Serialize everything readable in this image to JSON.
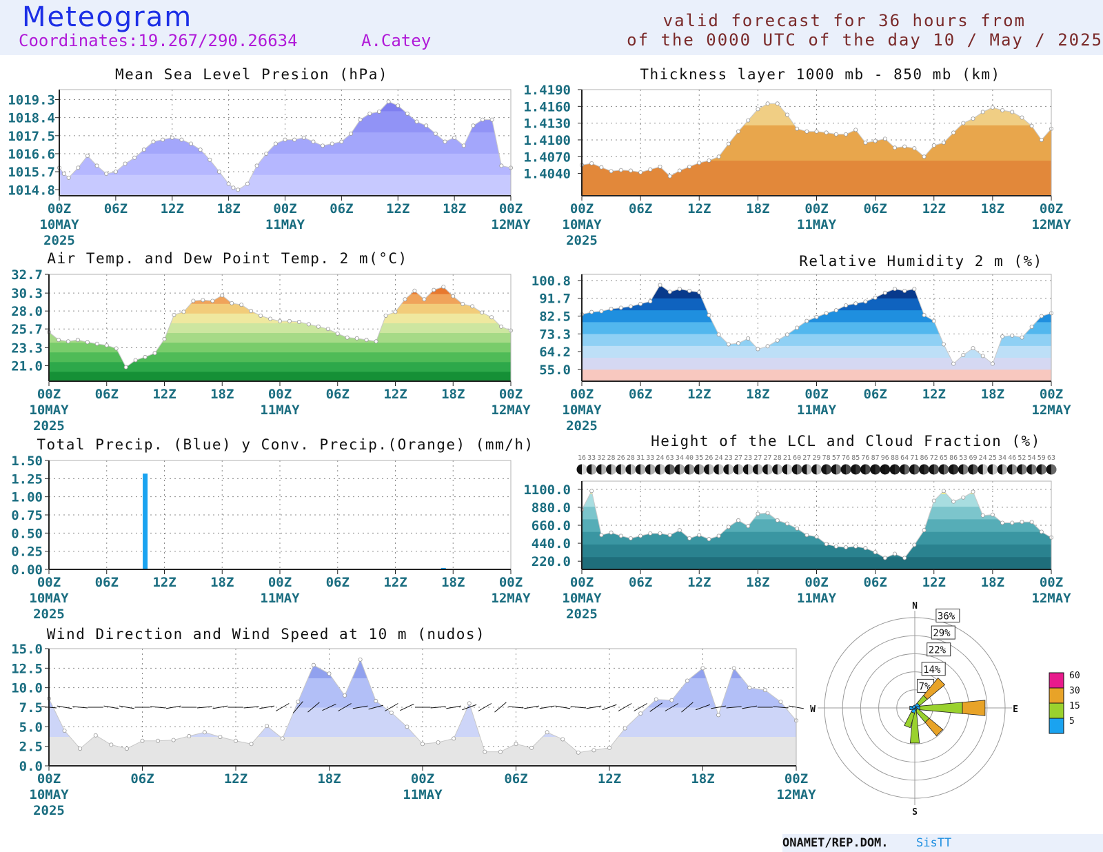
{
  "header": {
    "title": "Meteogram",
    "coordinates": "Coordinates:19.267/290.26634",
    "station": "A.Catey",
    "valid_line1": "valid forecast for 36 hours from",
    "valid_line2": "of the 0000 UTC of the day 10 / May / 2025"
  },
  "footer": {
    "org": "ONAMET/REP.DOM.",
    "system": "SisTT"
  },
  "time_axis": {
    "ticks": [
      "00Z",
      "06Z",
      "12Z",
      "18Z",
      "00Z",
      "06Z",
      "12Z",
      "18Z",
      "00Z"
    ],
    "dates": [
      {
        "at": 0,
        "line1": "10MAY",
        "line2": "2025"
      },
      {
        "at": 24,
        "line1": "11MAY",
        "line2": ""
      },
      {
        "at": 48,
        "line1": "12MAY",
        "line2": ""
      }
    ]
  },
  "colors": {
    "text": "#1a6d80",
    "grid": "#8a8a8a",
    "pressure_bands": [
      "#c7c9ff",
      "#b5b7ff",
      "#a3a6fb",
      "#9193f6",
      "#7f7ff0"
    ],
    "thickness_bands": [
      "#e2883a",
      "#e8a64c",
      "#f0ce84"
    ],
    "temp_bands": [
      "#159036",
      "#2da84a",
      "#4fbb57",
      "#79cc6b",
      "#a6da87",
      "#cde6a0",
      "#efe89f",
      "#f2cc7a",
      "#f0a35a",
      "#e7782f",
      "#e53b33"
    ],
    "rh_bands": [
      "#f8c8bf",
      "#d5d8f2",
      "#bddff7",
      "#8fd0f4",
      "#52b7ee",
      "#1f8fdf",
      "#0f63bf",
      "#083a8c",
      "#1a8a24"
    ],
    "lcl_bands": [
      "#1f6e7b",
      "#2a828f",
      "#3a96a2",
      "#56adb7",
      "#7cc5cc",
      "#a8dde0",
      "#f7f08a"
    ],
    "wind_bands": [
      "#e5e5e5",
      "#cdd5f8",
      "#b2bff7",
      "#91a1ee"
    ],
    "precip_total": "#1aa3f0",
    "precip_conv": "#f08c1a",
    "rose_bins": [
      "#1aa3f0",
      "#9ad22e",
      "#e8a328",
      "#e81a8c"
    ]
  },
  "chart_data": [
    {
      "id": "mslp",
      "type": "area",
      "title": "Mean Sea Level Presion (hPa)",
      "yticks": [
        1014.8,
        1015.7,
        1016.6,
        1017.5,
        1018.4,
        1019.3
      ],
      "ylim": [
        1014.5,
        1019.8
      ],
      "grid": true,
      "x_hours": [
        0,
        0.5,
        1,
        2,
        3,
        4,
        5,
        6,
        7,
        8,
        9,
        10,
        11,
        12,
        13,
        14,
        15,
        16,
        17,
        18,
        18.5,
        19,
        20,
        21,
        22,
        23,
        24,
        25,
        26,
        27,
        28,
        29,
        30,
        31,
        32,
        33,
        34,
        35,
        36,
        37,
        38,
        39,
        40,
        41,
        42,
        43,
        44,
        45,
        46,
        47,
        48
      ],
      "values": [
        1015.9,
        1015.6,
        1015.4,
        1015.9,
        1016.5,
        1016.0,
        1015.6,
        1015.7,
        1016.1,
        1016.4,
        1016.8,
        1017.2,
        1017.3,
        1017.4,
        1017.3,
        1017.1,
        1016.8,
        1016.3,
        1015.7,
        1015.1,
        1014.9,
        1014.8,
        1015.1,
        1016.0,
        1016.6,
        1017.1,
        1017.3,
        1017.3,
        1017.4,
        1017.2,
        1017.0,
        1017.1,
        1017.2,
        1017.6,
        1018.3,
        1018.6,
        1018.7,
        1019.2,
        1019.0,
        1018.6,
        1018.2,
        1018.0,
        1017.6,
        1017.2,
        1017.4,
        1017.0,
        1018.0,
        1018.3,
        1018.3,
        1016.0,
        1015.9
      ]
    },
    {
      "id": "thickness",
      "type": "area",
      "title": "Thickness layer 1000 mb - 850 mb (km)",
      "yticks": [
        1.404,
        1.407,
        1.41,
        1.413,
        1.416,
        1.419
      ],
      "ytick_labels": [
        "1.4040",
        "1.4070",
        "1.4100",
        "1.4130",
        "1.4160",
        "1.4190"
      ],
      "ylim": [
        1.4,
        1.419
      ],
      "grid": true,
      "x_hours": [
        0,
        1,
        2,
        3,
        4,
        5,
        6,
        7,
        8,
        9,
        10,
        11,
        12,
        13,
        14,
        15,
        16,
        17,
        18,
        19,
        20,
        21,
        22,
        23,
        24,
        25,
        26,
        27,
        28,
        29,
        30,
        31,
        32,
        33,
        34,
        35,
        36,
        37,
        38,
        39,
        40,
        41,
        42,
        43,
        44,
        45,
        46,
        47,
        48
      ],
      "values": [
        1.4055,
        1.4058,
        1.4051,
        1.4044,
        1.4046,
        1.4045,
        1.4042,
        1.4047,
        1.4052,
        1.4035,
        1.4045,
        1.4052,
        1.4059,
        1.4063,
        1.407,
        1.4093,
        1.4115,
        1.4135,
        1.4155,
        1.4165,
        1.4165,
        1.4145,
        1.412,
        1.4115,
        1.4115,
        1.4113,
        1.411,
        1.411,
        1.4118,
        1.4095,
        1.4098,
        1.4102,
        1.4086,
        1.4088,
        1.4085,
        1.407,
        1.409,
        1.4095,
        1.4113,
        1.413,
        1.4138,
        1.415,
        1.4158,
        1.4153,
        1.415,
        1.414,
        1.4125,
        1.41,
        1.412
      ]
    },
    {
      "id": "temperature",
      "type": "area",
      "title": "Air Temp. and Dew Point Temp. 2 m(°C)",
      "yticks": [
        21.0,
        23.3,
        25.7,
        28.0,
        30.3,
        32.7
      ],
      "ylim": [
        19.0,
        32.7
      ],
      "grid": true,
      "x_hours": [
        0,
        1,
        2,
        3,
        4,
        5,
        6,
        7,
        8,
        9,
        10,
        11,
        12,
        13,
        14,
        15,
        16,
        17,
        18,
        19,
        20,
        21,
        22,
        23,
        24,
        25,
        26,
        27,
        28,
        29,
        30,
        31,
        32,
        33,
        34,
        35,
        36,
        37,
        38,
        39,
        40,
        41,
        42,
        43,
        44,
        45,
        46,
        47,
        48
      ],
      "values": [
        25.3,
        24.3,
        24.1,
        24.3,
        24.0,
        23.8,
        23.6,
        23.2,
        20.8,
        21.7,
        22.1,
        22.6,
        24.4,
        27.5,
        27.9,
        29.3,
        29.4,
        29.3,
        30.0,
        29.0,
        28.8,
        28.0,
        27.4,
        27.0,
        26.7,
        26.7,
        26.6,
        26.3,
        26.0,
        25.7,
        25.1,
        24.6,
        24.5,
        24.3,
        24.1,
        27.4,
        27.9,
        29.5,
        30.6,
        29.5,
        30.7,
        31.1,
        29.9,
        28.9,
        28.6,
        27.8,
        27.2,
        26.0,
        25.5
      ]
    },
    {
      "id": "humidity",
      "type": "area",
      "title": "Relative Humidity 2 m (%)",
      "yticks": [
        55.0,
        64.2,
        73.3,
        82.5,
        91.7,
        100.8
      ],
      "ylim": [
        49.0,
        104.0
      ],
      "grid": true,
      "x_hours": [
        0,
        1,
        2,
        3,
        4,
        5,
        6,
        7,
        8,
        9,
        10,
        11,
        12,
        13,
        14,
        15,
        16,
        17,
        18,
        19,
        20,
        21,
        22,
        23,
        24,
        25,
        26,
        27,
        28,
        29,
        30,
        31,
        32,
        33,
        34,
        35,
        36,
        37,
        38,
        39,
        40,
        41,
        42,
        43,
        44,
        45,
        46,
        47,
        48
      ],
      "values": [
        83.4,
        84.6,
        85.0,
        86.2,
        86.8,
        87.5,
        88.8,
        90.1,
        98.5,
        95.0,
        96.5,
        95.5,
        94.8,
        83.0,
        73.0,
        68.0,
        68.5,
        71.0,
        65.5,
        67.0,
        70.0,
        73.0,
        76.5,
        80.0,
        82.0,
        84.0,
        85.5,
        88.0,
        89.0,
        90.0,
        92.0,
        94.5,
        96.5,
        95.5,
        96.5,
        83.0,
        80.0,
        68.0,
        58.0,
        62.5,
        66.0,
        62.0,
        58.0,
        72.0,
        72.5,
        71.5,
        77.0,
        82.5,
        84.0
      ]
    },
    {
      "id": "precipitation",
      "type": "bar",
      "title": "Total Precip. (Blue) y Conv. Precip.(Orange) (mm/h)",
      "yticks": [
        0.0,
        0.25,
        0.5,
        0.75,
        1.0,
        1.25,
        1.5
      ],
      "ytick_labels": [
        "0.00",
        "0.25",
        "0.50",
        "0.75",
        "1.00",
        "1.25",
        "1.50"
      ],
      "ylim": [
        0,
        1.5
      ],
      "grid": true,
      "series": [
        {
          "name": "Total",
          "x_hours": [
            10,
            41
          ],
          "values": [
            1.32,
            0.02
          ]
        },
        {
          "name": "Conv.",
          "x_hours": [],
          "values": []
        }
      ]
    },
    {
      "id": "lcl",
      "type": "area",
      "title": "Height of the LCL and Cloud Fraction (%)",
      "yticks": [
        220.0,
        440.0,
        660.0,
        880.0,
        1100.0
      ],
      "ylim": [
        120.0,
        1200.0
      ],
      "grid": true,
      "x_hours": [
        0,
        1,
        2,
        3,
        4,
        5,
        6,
        7,
        8,
        9,
        10,
        11,
        12,
        13,
        14,
        15,
        16,
        17,
        18,
        19,
        20,
        21,
        22,
        23,
        24,
        25,
        26,
        27,
        28,
        29,
        30,
        31,
        32,
        33,
        34,
        35,
        36,
        37,
        38,
        39,
        40,
        41,
        42,
        43,
        44,
        45,
        46,
        47,
        48
      ],
      "values": [
        850,
        1080,
        540,
        570,
        530,
        500,
        530,
        560,
        560,
        540,
        600,
        500,
        540,
        490,
        530,
        640,
        720,
        650,
        800,
        810,
        720,
        680,
        620,
        540,
        520,
        430,
        400,
        390,
        400,
        380,
        330,
        260,
        310,
        260,
        420,
        600,
        960,
        1080,
        950,
        1000,
        1070,
        780,
        790,
        690,
        690,
        700,
        700,
        580,
        510
      ],
      "cloud_fraction_labels": [
        "16",
        "33",
        "32",
        "28",
        "26",
        "28",
        "31",
        "33",
        "24",
        "63",
        "34",
        "40",
        "35",
        "26",
        "24",
        "23",
        "27",
        "23",
        "27",
        "27",
        "28",
        "21",
        "60",
        "27",
        "29",
        "78",
        "57",
        "76",
        "85",
        "76",
        "87",
        "96",
        "88",
        "64",
        "71",
        "86",
        "72",
        "65",
        "86",
        "53",
        "69",
        "24",
        "25",
        "34",
        "46",
        "52",
        "54",
        "59",
        "63"
      ]
    },
    {
      "id": "wind",
      "type": "area",
      "title": "Wind Direction and Wind Speed at 10 m (nudos)",
      "yticks": [
        0.0,
        2.5,
        5.0,
        7.5,
        10.0,
        12.5,
        15.0
      ],
      "ylim": [
        0,
        15.0
      ],
      "grid": true,
      "x_hours": [
        0,
        1,
        2,
        3,
        4,
        5,
        6,
        7,
        8,
        9,
        10,
        11,
        12,
        13,
        14,
        15,
        16,
        17,
        18,
        19,
        20,
        21,
        22,
        23,
        24,
        25,
        26,
        27,
        28,
        29,
        30,
        31,
        32,
        33,
        34,
        35,
        36,
        37,
        38,
        39,
        40,
        41,
        42,
        43,
        44,
        45,
        46,
        47,
        48
      ],
      "values": [
        8.6,
        4.5,
        2.2,
        3.9,
        2.7,
        2.2,
        3.2,
        3.2,
        3.3,
        3.8,
        4.3,
        3.7,
        3.2,
        2.8,
        5.1,
        3.5,
        8.2,
        12.9,
        11.8,
        9.0,
        13.6,
        8.3,
        6.8,
        5.0,
        2.8,
        3.0,
        3.5,
        8.0,
        1.8,
        1.8,
        2.8,
        2.3,
        4.3,
        3.4,
        1.7,
        2.0,
        2.3,
        4.8,
        6.7,
        8.5,
        8.4,
        10.9,
        12.5,
        6.5,
        12.5,
        10.0,
        9.7,
        8.2,
        5.8
      ],
      "directions_deg": [
        95,
        100,
        95,
        90,
        100,
        100,
        90,
        95,
        80,
        90,
        85,
        80,
        90,
        85,
        80,
        60,
        40,
        50,
        65,
        60,
        80,
        75,
        60,
        65,
        90,
        85,
        80,
        70,
        60,
        50,
        95,
        80,
        80,
        100,
        95,
        80,
        70,
        60,
        60,
        55,
        60,
        50,
        70,
        80,
        85,
        80,
        90,
        95,
        100
      ]
    },
    {
      "id": "wind_rose",
      "type": "pie",
      "compass": [
        "N",
        "E",
        "S",
        "W"
      ],
      "ring_labels": [
        "7%",
        "14%",
        "22%",
        "29%",
        "36%"
      ],
      "ring_values": [
        7,
        14,
        22,
        29,
        36
      ],
      "speed_bins": [
        "5",
        "15",
        "30",
        "60"
      ],
      "petals": [
        {
          "dir_deg": 45,
          "percent": [
            2,
            4,
            9,
            0
          ]
        },
        {
          "dir_deg": 90,
          "percent": [
            2,
            17,
            9,
            0
          ]
        },
        {
          "dir_deg": 135,
          "percent": [
            1,
            6,
            7,
            0
          ]
        },
        {
          "dir_deg": 180,
          "percent": [
            1,
            13,
            0,
            0
          ]
        },
        {
          "dir_deg": 202,
          "percent": [
            2,
            6,
            0,
            0
          ]
        },
        {
          "dir_deg": 270,
          "percent": [
            2,
            0,
            0,
            0
          ]
        },
        {
          "dir_deg": 315,
          "percent": [
            1,
            0,
            0,
            0
          ]
        }
      ]
    }
  ]
}
